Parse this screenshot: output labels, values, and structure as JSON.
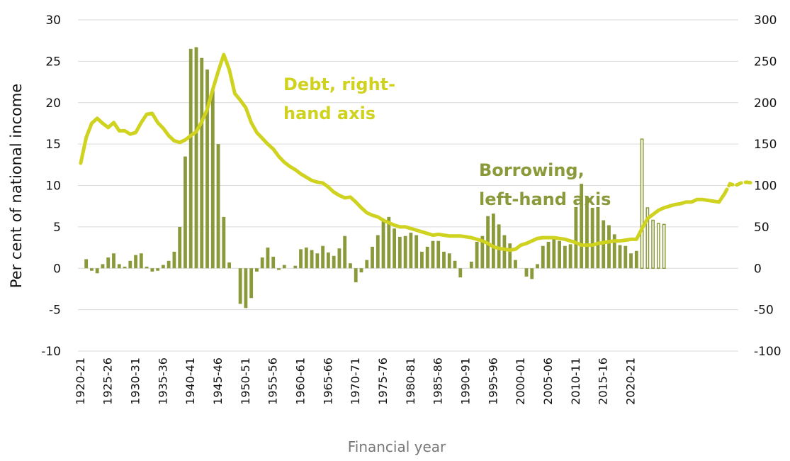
{
  "chart_data": {
    "type": "bar-line",
    "xlabel": "Financial year",
    "ylabel": "Per cent of national income",
    "y_left_lim": [
      -10,
      30
    ],
    "y_right_lim": [
      -100,
      300
    ],
    "y_left_ticks": [
      "-10",
      "-5",
      "0",
      "5",
      "10",
      "15",
      "20",
      "25",
      "30"
    ],
    "y_right_ticks": [
      "-100",
      "-50",
      "0",
      "50",
      "100",
      "150",
      "200",
      "250",
      "300"
    ],
    "x_tick_labels": [
      "1920-21",
      "1925-26",
      "1930-31",
      "1935-36",
      "1940-41",
      "1945-46",
      "1950-51",
      "1955-56",
      "1960-61",
      "1965-66",
      "1970-71",
      "1975-76",
      "1980-81",
      "1985-86",
      "1990-91",
      "1995-96",
      "2000-01",
      "2005-06",
      "2010-11",
      "2015-16",
      "2020-21"
    ],
    "start_year": 1920,
    "grid": true,
    "colors": {
      "bar": "#8a9a3a",
      "line": "#cfd21e",
      "forecast_outline": "#8a9a3a"
    },
    "annotations": [
      {
        "lines": [
          "Debt, right-",
          "hand axis"
        ],
        "color": "#cfd21e"
      },
      {
        "lines": [
          "Borrowing,",
          "left-hand axis"
        ],
        "color": "#8a9a3a"
      }
    ],
    "series": [
      {
        "name": "Borrowing",
        "axis": "left",
        "kind": "bar",
        "values": [
          0.0,
          1.1,
          -0.3,
          -0.6,
          0.5,
          1.3,
          1.8,
          0.5,
          0.2,
          0.9,
          1.6,
          1.8,
          0.2,
          -0.4,
          -0.3,
          0.4,
          0.9,
          2.0,
          5.0,
          13.5,
          26.5,
          26.7,
          25.4,
          24.0,
          21.5,
          15.0,
          6.2,
          0.7,
          0.0,
          -4.3,
          -4.8,
          -3.6,
          -0.4,
          1.3,
          2.5,
          1.4,
          -0.2,
          0.4,
          0.0,
          0.3,
          2.3,
          2.5,
          2.2,
          1.8,
          2.7,
          1.9,
          1.5,
          2.4,
          3.9,
          0.6,
          -1.7,
          -0.5,
          1.0,
          2.6,
          4.0,
          5.7,
          6.2,
          4.8,
          3.8,
          3.9,
          4.3,
          4.0,
          2.0,
          2.6,
          3.3,
          3.3,
          2.0,
          1.8,
          0.9,
          -1.1,
          0.0,
          0.8,
          3.2,
          3.9,
          6.3,
          6.6,
          5.3,
          4.0,
          3.0,
          1.0,
          0.0,
          -1.0,
          -1.3,
          0.5,
          2.7,
          3.2,
          3.7,
          3.3,
          2.7,
          2.9,
          7.4,
          10.2,
          8.7,
          7.3,
          7.4,
          5.8,
          5.2,
          4.1,
          2.8,
          2.7,
          1.8,
          2.1
        ],
        "forecast_values": [
          15.6,
          7.3,
          5.8,
          5.4,
          5.3
        ]
      },
      {
        "name": "Debt",
        "axis": "right",
        "kind": "line",
        "values": [
          127,
          158,
          175,
          181,
          175,
          170,
          176,
          166,
          166,
          162,
          164,
          176,
          186,
          187,
          176,
          169,
          160,
          154,
          152,
          155,
          160,
          165,
          177,
          192,
          216,
          238,
          258,
          240,
          211,
          203,
          194,
          176,
          164,
          157,
          150,
          144,
          135,
          128,
          123,
          119,
          114,
          110,
          106,
          104,
          103,
          98,
          92,
          88,
          85,
          86,
          80,
          73,
          67,
          64,
          62,
          58,
          55,
          52,
          50,
          50,
          48,
          46,
          44,
          42,
          40,
          41,
          40,
          39,
          39,
          39,
          38,
          37,
          35,
          33,
          30,
          26,
          24,
          23,
          22,
          23,
          28,
          30,
          33,
          36,
          37,
          37,
          37,
          36,
          35,
          33,
          31,
          28,
          28,
          28,
          30,
          31,
          32,
          33,
          33,
          34,
          35,
          35,
          48,
          60,
          65,
          70,
          73,
          75,
          77,
          78,
          80,
          80,
          83,
          83,
          82,
          81,
          80,
          90
        ],
        "forecast_values": [
          102,
          100,
          103,
          104,
          103
        ]
      }
    ]
  }
}
